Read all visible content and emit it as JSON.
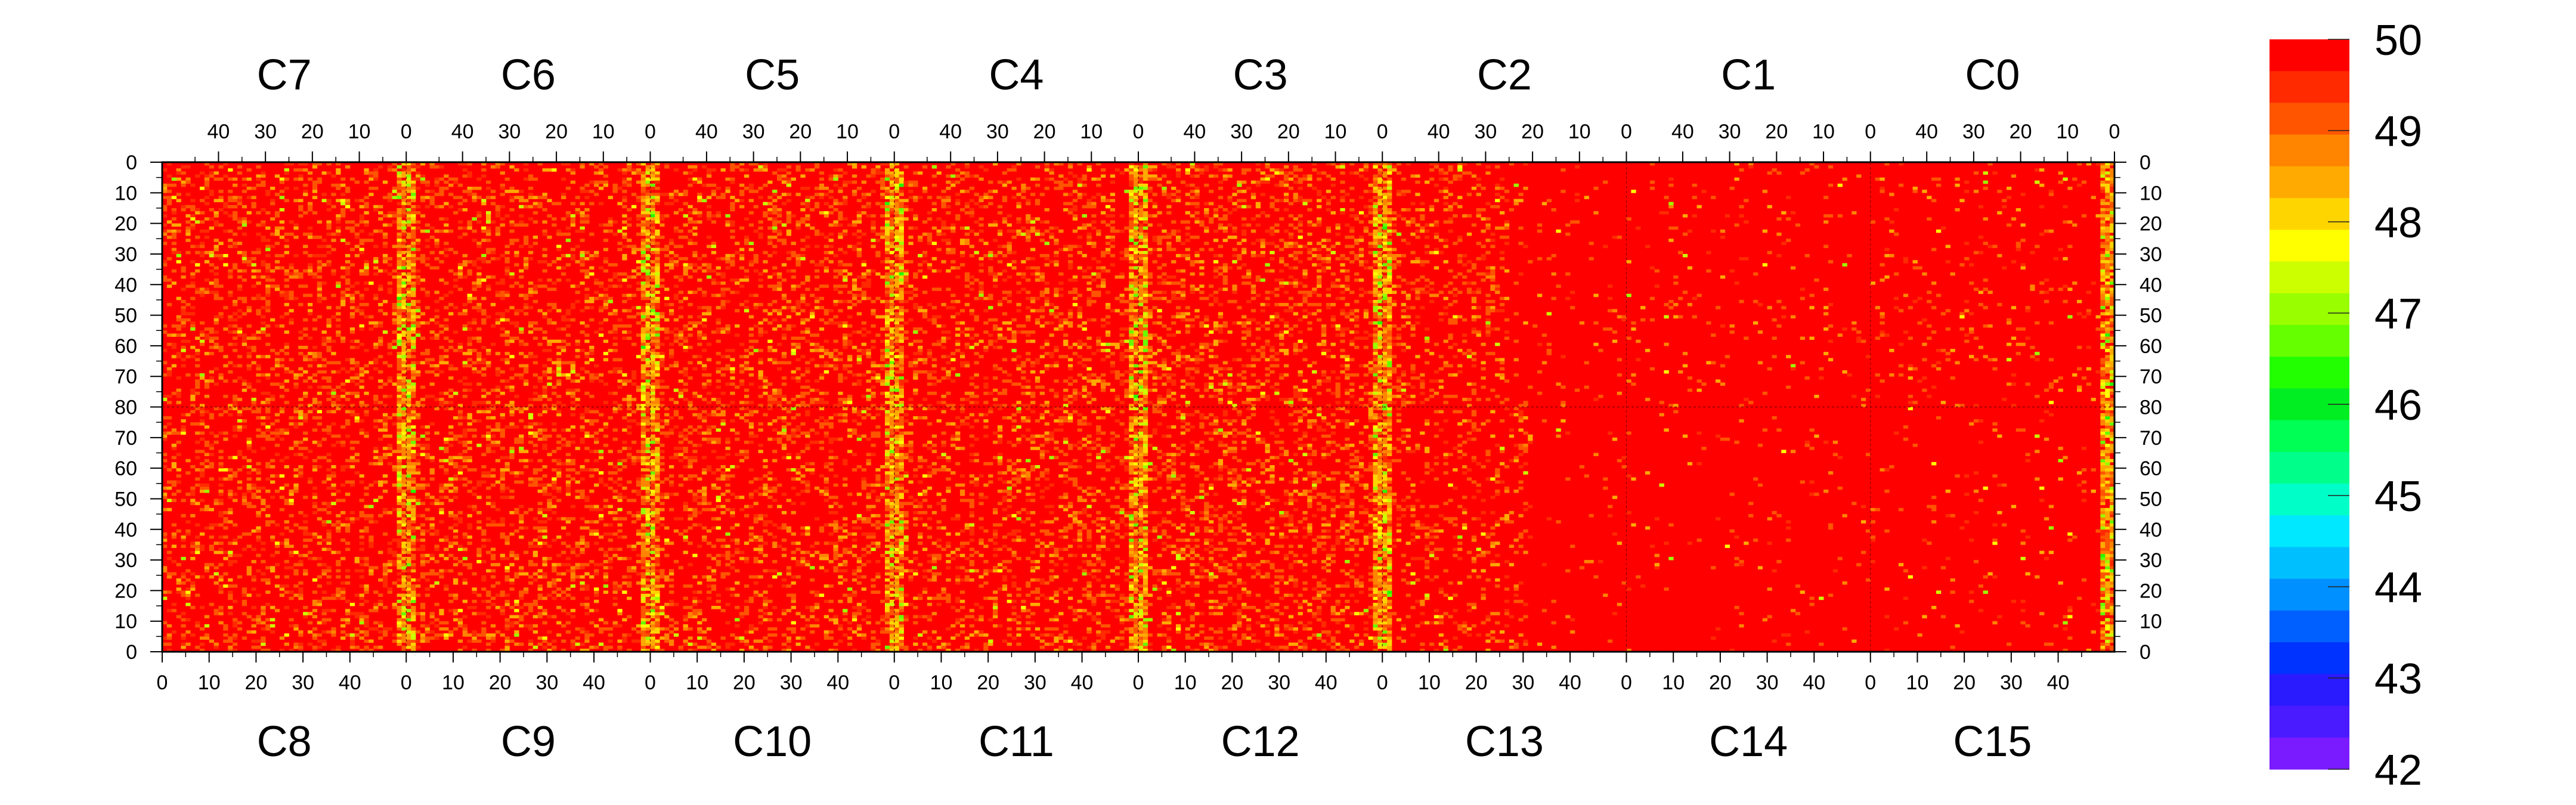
{
  "chart_data": {
    "type": "heatmap",
    "title": "",
    "top_chip_labels": [
      "C7",
      "C6",
      "C5",
      "C4",
      "C3",
      "C2",
      "C1",
      "C0"
    ],
    "bottom_chip_labels": [
      "C8",
      "C9",
      "C10",
      "C11",
      "C12",
      "C13",
      "C14",
      "C15"
    ],
    "top_axis_ticks": [
      "40",
      "30",
      "20",
      "10",
      "0"
    ],
    "bottom_axis_ticks": [
      "0",
      "10",
      "20",
      "30",
      "40"
    ],
    "left_axis_ticks": [
      "0",
      "10",
      "20",
      "30",
      "40",
      "50",
      "60",
      "70",
      "80",
      "70",
      "60",
      "50",
      "40",
      "30",
      "20",
      "10",
      "0"
    ],
    "right_axis_ticks": [
      "0",
      "10",
      "20",
      "30",
      "40",
      "50",
      "60",
      "70",
      "80",
      "70",
      "60",
      "50",
      "40",
      "30",
      "20",
      "10",
      "0"
    ],
    "columns_per_chip": 52,
    "rows_per_half": 80,
    "z_range": [
      42,
      50
    ],
    "z_labels": [
      "50",
      "49",
      "48",
      "47",
      "46",
      "45",
      "44",
      "43",
      "42"
    ],
    "palette": [
      "#7a1bff",
      "#4a1bff",
      "#2a1bff",
      "#0033ff",
      "#0060ff",
      "#0090ff",
      "#00bfff",
      "#00e8ff",
      "#00ffc8",
      "#00ff8a",
      "#00ff55",
      "#00ee22",
      "#22ff00",
      "#66ff00",
      "#99ff00",
      "#ccff00",
      "#ffff00",
      "#ffd500",
      "#ffaa00",
      "#ff8400",
      "#ff5500",
      "#ff2a00",
      "#ff0000"
    ],
    "chip_noise_density": [
      0.28,
      0.27,
      0.28,
      0.26,
      0.27,
      0.22,
      0.05,
      0.07,
      0.26,
      0.27,
      0.26,
      0.24,
      0.27,
      0.18,
      0.03,
      0.04
    ],
    "noisy_edge_columns": "High-noise (yellow/green) stripes appear at chip boundaries between C7|C6, C6|C5, C5|C4, C4|C3, C3|C2 and along the right edge of C0",
    "grid": false
  }
}
